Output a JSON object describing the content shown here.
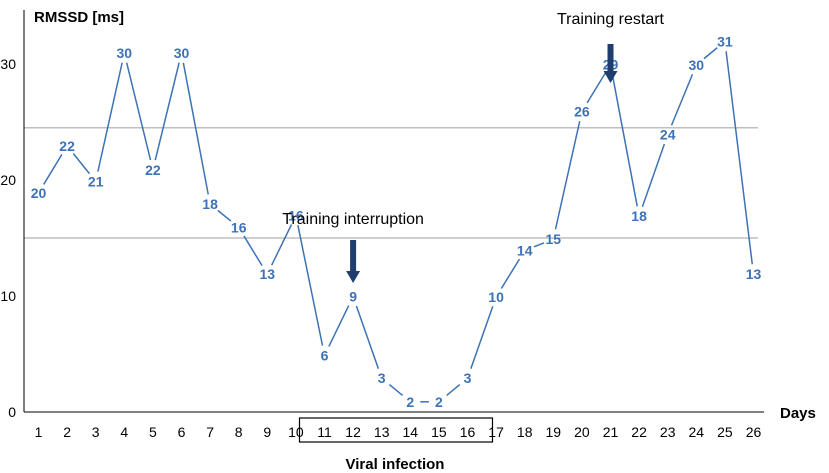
{
  "chart_data": {
    "type": "line",
    "ylabel": "RMSSD [ms]",
    "xlabel": "Days",
    "ylim": [
      0,
      35
    ],
    "yticks": [
      0,
      10,
      20,
      30
    ],
    "x": [
      1,
      2,
      3,
      4,
      5,
      6,
      7,
      8,
      9,
      10,
      11,
      12,
      13,
      14,
      15,
      16,
      17,
      18,
      19,
      20,
      21,
      22,
      23,
      24,
      25,
      26
    ],
    "x_tick_labels": [
      "1",
      "2",
      "3",
      "4",
      "5",
      "6",
      "7",
      "8",
      "9",
      "10",
      "11",
      "12",
      "13",
      "14",
      "15",
      "16",
      "17",
      "18",
      "19",
      "20",
      "21",
      "22",
      "23",
      "24",
      "25",
      "26"
    ],
    "series": [
      {
        "values": [
          20,
          22,
          21,
          30,
          22,
          30,
          18,
          16,
          13,
          16,
          6,
          9,
          3,
          2,
          2,
          3,
          10,
          14,
          15,
          26,
          29,
          18,
          24,
          30,
          31,
          13
        ],
        "color": "#3d72b4",
        "data_labels": true
      }
    ],
    "reference_lines": [
      24.5,
      15
    ],
    "reference_line_color": "#bfbfbf",
    "annotations": [
      {
        "text": "Training interruption",
        "day": 12,
        "arrow": true,
        "arrow_color": "#1f3e6e"
      },
      {
        "text": "Training restart",
        "day": 21,
        "arrow": true,
        "arrow_color": "#1f3e6e"
      }
    ],
    "highlight_box": {
      "from_day": 11,
      "to_day": 16,
      "label": "Viral infection"
    },
    "grid": false,
    "legend": "none"
  }
}
